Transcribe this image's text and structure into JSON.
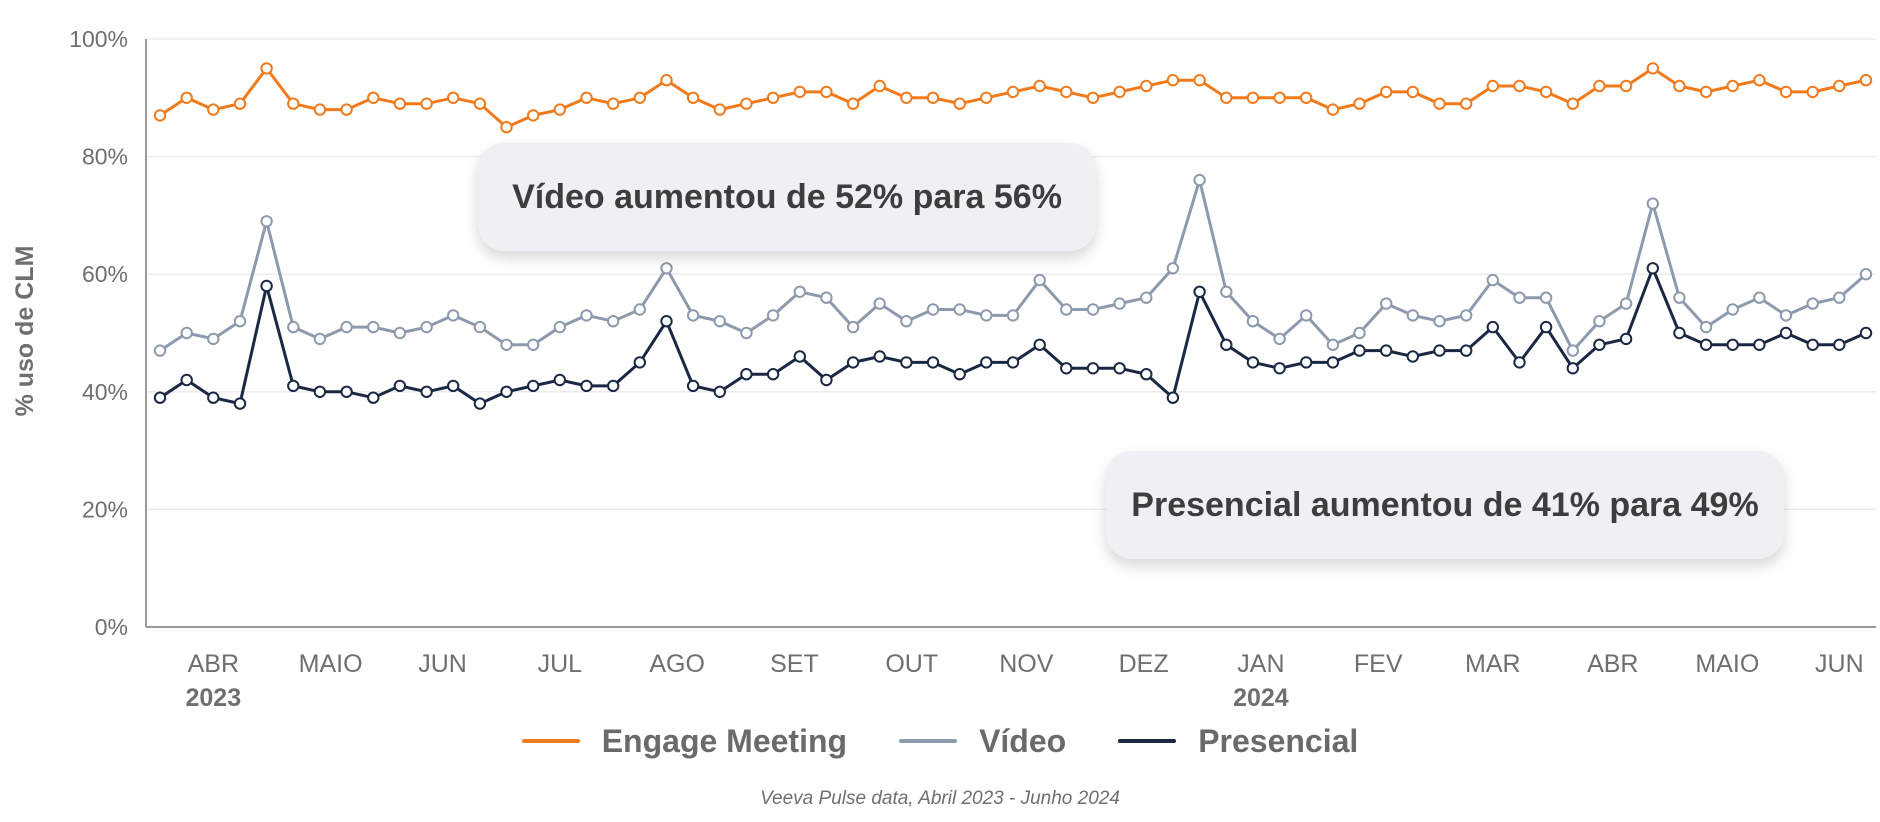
{
  "chart_data": {
    "type": "line",
    "ylabel": "% uso de CLM",
    "ylim": [
      0,
      100
    ],
    "yticks": [
      "0%",
      "20%",
      "40%",
      "60%",
      "80%",
      "100%"
    ],
    "xticks": [
      {
        "label": "ABR",
        "year": "2023",
        "at": 2
      },
      {
        "label": "MAIO",
        "at": 6.4
      },
      {
        "label": "JUN",
        "at": 10.6
      },
      {
        "label": "JUL",
        "at": 15
      },
      {
        "label": "AGO",
        "at": 19.4
      },
      {
        "label": "SET",
        "at": 23.8
      },
      {
        "label": "OUT",
        "at": 28.2
      },
      {
        "label": "NOV",
        "at": 32.5
      },
      {
        "label": "DEZ",
        "at": 36.9
      },
      {
        "label": "JAN",
        "year": "2024",
        "at": 41.3
      },
      {
        "label": "FEV",
        "at": 45.7
      },
      {
        "label": "MAR",
        "at": 50
      },
      {
        "label": "ABR",
        "at": 54.5
      },
      {
        "label": "MAIO",
        "at": 58.8
      },
      {
        "label": "JUN",
        "at": 63
      }
    ],
    "grid": true,
    "legend_position": "bottom",
    "series": [
      {
        "name": "Engage Meeting",
        "color": "#f07a1c",
        "values": [
          87,
          90,
          88,
          89,
          95,
          89,
          88,
          88,
          90,
          89,
          89,
          90,
          89,
          85,
          87,
          88,
          90,
          89,
          90,
          93,
          90,
          88,
          89,
          90,
          91,
          91,
          89,
          92,
          90,
          90,
          89,
          90,
          91,
          92,
          91,
          90,
          91,
          92,
          93,
          93,
          90,
          90,
          90,
          90,
          88,
          89,
          91,
          91,
          89,
          89,
          92,
          92,
          91,
          89,
          92,
          92,
          95,
          92,
          91,
          92,
          93,
          91,
          91,
          92,
          93
        ]
      },
      {
        "name": "Vídeo",
        "color": "#8d9aae",
        "values": [
          47,
          50,
          49,
          52,
          69,
          51,
          49,
          51,
          51,
          50,
          51,
          53,
          51,
          48,
          48,
          51,
          53,
          52,
          54,
          61,
          53,
          52,
          50,
          53,
          57,
          56,
          51,
          55,
          52,
          54,
          54,
          53,
          53,
          59,
          54,
          54,
          55,
          56,
          61,
          76,
          57,
          52,
          49,
          53,
          48,
          50,
          55,
          53,
          52,
          53,
          59,
          56,
          56,
          47,
          52,
          55,
          72,
          56,
          51,
          54,
          56,
          53,
          55,
          56,
          60
        ]
      },
      {
        "name": "Presencial",
        "color": "#1a2844",
        "values": [
          39,
          42,
          39,
          38,
          58,
          41,
          40,
          40,
          39,
          41,
          40,
          41,
          38,
          40,
          41,
          42,
          41,
          41,
          45,
          52,
          41,
          40,
          43,
          43,
          46,
          42,
          45,
          46,
          45,
          45,
          43,
          45,
          45,
          48,
          44,
          44,
          44,
          43,
          39,
          57,
          48,
          45,
          44,
          45,
          45,
          47,
          47,
          46,
          47,
          47,
          51,
          45,
          51,
          44,
          48,
          49,
          61,
          50,
          48,
          48,
          48,
          50,
          48,
          48,
          50
        ]
      }
    ]
  },
  "callouts": {
    "video": "Vídeo aumentou de 52% para 56%",
    "presencial": "Presencial aumentou de 41% para 49%"
  },
  "source": "Veeva Pulse data, Abril 2023 - Junho 2024"
}
